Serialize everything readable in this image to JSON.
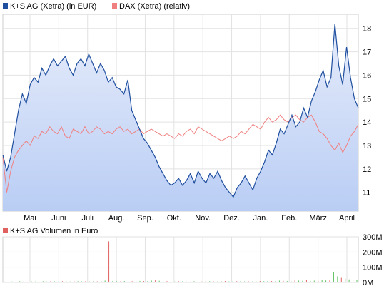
{
  "chart_data": [
    {
      "type": "line",
      "legend_placement": "top-left",
      "legend": [
        {
          "label": "K+S AG (Xetra) (in EUR)",
          "color": "#1f4f9f"
        },
        {
          "label": "DAX (Xetra) (relativ)",
          "color": "#f08080"
        }
      ],
      "ylim": [
        10.2,
        18.6
      ],
      "y_ticks": [
        "11",
        "12",
        "13",
        "14",
        "15",
        "16",
        "17",
        "18"
      ],
      "y_axis_side": "right",
      "x_ticks": [
        "Mai",
        "Juni",
        "Juli",
        "Aug.",
        "Sep.",
        "Okt.",
        "Nov.",
        "Dez.",
        "Jan.",
        "Feb.",
        "März",
        "April"
      ],
      "grid": true,
      "series": [
        {
          "name": "K+S AG (Xetra) (in EUR)",
          "color": "#1f4f9f",
          "fill": "area-gradient",
          "values": [
            12.6,
            11.9,
            12.5,
            13.5,
            14.5,
            15.2,
            14.8,
            15.6,
            15.9,
            15.7,
            16.3,
            16.0,
            16.4,
            16.7,
            16.4,
            16.6,
            16.8,
            16.3,
            16.0,
            16.5,
            16.7,
            16.4,
            16.9,
            16.5,
            16.1,
            16.5,
            16.2,
            15.7,
            15.9,
            15.5,
            15.4,
            15.2,
            15.8,
            14.5,
            14.1,
            13.7,
            13.3,
            13.1,
            12.8,
            12.5,
            12.1,
            11.8,
            11.5,
            11.3,
            11.4,
            11.6,
            11.3,
            11.5,
            11.8,
            11.4,
            11.9,
            11.6,
            11.4,
            11.8,
            11.6,
            11.9,
            11.5,
            11.2,
            11.0,
            10.8,
            11.2,
            11.4,
            11.7,
            11.4,
            11.1,
            11.6,
            11.9,
            12.3,
            12.8,
            12.6,
            13.1,
            13.7,
            13.5,
            13.9,
            14.3,
            13.8,
            14.0,
            14.6,
            14.2,
            14.9,
            15.3,
            15.8,
            16.2,
            15.5,
            15.9,
            18.2,
            16.4,
            15.6,
            17.2,
            15.9,
            15.0,
            14.6
          ],
          "volume_values_m": [
            5,
            4,
            6,
            5,
            8,
            6,
            5,
            7,
            6,
            5,
            8,
            6,
            9,
            7,
            6,
            8,
            7,
            6,
            10,
            8,
            7,
            9,
            6,
            8,
            7,
            9,
            12,
            270,
            10,
            8,
            7,
            9,
            6,
            8,
            7,
            10,
            9,
            8,
            12,
            14,
            11,
            9,
            8,
            7,
            6,
            8,
            7,
            6,
            5,
            8,
            7,
            6,
            9,
            8,
            7,
            6,
            8,
            9,
            7,
            10,
            8,
            9,
            7,
            8,
            6,
            7,
            9,
            8,
            10,
            9,
            8,
            12,
            11,
            9,
            10,
            13,
            12,
            11,
            14,
            10,
            12,
            11,
            16,
            13,
            15,
            70,
            40,
            30,
            25,
            20,
            18,
            15
          ]
        },
        {
          "name": "DAX (Xetra) (relativ)",
          "color": "#f08080",
          "values": [
            12.5,
            11.0,
            11.9,
            12.5,
            12.8,
            13.0,
            13.2,
            13.0,
            13.4,
            13.3,
            13.6,
            13.5,
            13.8,
            13.6,
            13.5,
            13.8,
            13.4,
            13.3,
            13.7,
            13.6,
            13.5,
            13.8,
            13.5,
            13.6,
            13.8,
            13.7,
            13.5,
            13.6,
            13.5,
            13.7,
            13.8,
            13.6,
            13.7,
            13.5,
            13.6,
            13.7,
            13.5,
            13.6,
            13.7,
            13.6,
            13.5,
            13.4,
            13.5,
            13.4,
            13.3,
            13.5,
            13.4,
            13.6,
            13.7,
            13.5,
            13.8,
            13.7,
            13.6,
            13.5,
            13.4,
            13.3,
            13.2,
            13.3,
            13.4,
            13.3,
            13.4,
            13.6,
            13.5,
            13.7,
            13.9,
            13.8,
            13.7,
            14.0,
            14.2,
            14.0,
            14.1,
            14.3,
            14.1,
            14.0,
            14.2,
            14.3,
            14.1,
            14.0,
            14.2,
            14.3,
            14.0,
            13.6,
            13.5,
            13.3,
            13.0,
            12.8,
            13.1,
            12.7,
            13.0,
            13.4,
            13.6,
            13.9
          ]
        }
      ]
    },
    {
      "type": "bar",
      "title": "K+S AG Volumen in Euro",
      "legend_color": "#e06060",
      "y_ticks": [
        "300M",
        "200M",
        "100M",
        "0M"
      ],
      "ylim": [
        0,
        300
      ],
      "y_axis_side": "right"
    }
  ]
}
